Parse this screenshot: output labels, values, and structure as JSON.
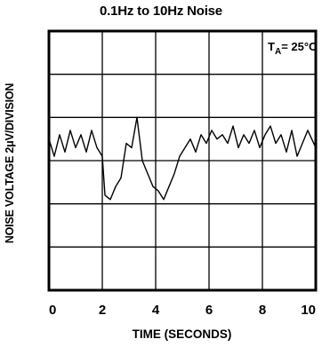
{
  "chart_data": {
    "type": "line",
    "title": "0.1Hz to 10Hz Noise",
    "xlabel": "TIME (SECONDS)",
    "ylabel": "NOISE VOLTAGE 2μV/DIVISION",
    "annotation": {
      "sub_main": "T",
      "sub": "A",
      "rest": "= 25°C"
    },
    "xlim": [
      0,
      10
    ],
    "ylim": [
      -3,
      3
    ],
    "x_ticks": [
      "0",
      "2",
      "4",
      "6",
      "8",
      "10"
    ],
    "grid": true,
    "series": [
      {
        "x": [
          0,
          0.2,
          0.4,
          0.6,
          0.8,
          1.0,
          1.2,
          1.4,
          1.6,
          1.8,
          2.0,
          2.1,
          2.3,
          2.5,
          2.7,
          2.9,
          3.1,
          3.3,
          3.5,
          3.7,
          3.9,
          4.1,
          4.3,
          4.5,
          4.7,
          4.9,
          5.1,
          5.3,
          5.5,
          5.7,
          5.9,
          6.1,
          6.3,
          6.5,
          6.7,
          6.9,
          7.1,
          7.3,
          7.5,
          7.7,
          7.9,
          8.1,
          8.3,
          8.5,
          8.7,
          8.9,
          9.1,
          9.3,
          9.5,
          9.7,
          9.85,
          10.0
        ],
        "y": [
          0.5,
          0.1,
          0.6,
          0.2,
          0.7,
          0.3,
          0.6,
          0.2,
          0.7,
          0.3,
          0.1,
          -0.8,
          -0.9,
          -0.6,
          -0.4,
          0.4,
          0.3,
          1.0,
          0.0,
          -0.3,
          -0.6,
          -0.7,
          -0.9,
          -0.6,
          -0.3,
          0.1,
          0.3,
          0.5,
          0.2,
          0.6,
          0.4,
          0.7,
          0.5,
          0.6,
          0.4,
          0.8,
          0.3,
          0.6,
          0.4,
          0.7,
          0.3,
          0.6,
          0.8,
          0.4,
          0.6,
          0.2,
          0.7,
          0.1,
          0.4,
          0.7,
          0.5,
          0.3
        ]
      }
    ]
  }
}
